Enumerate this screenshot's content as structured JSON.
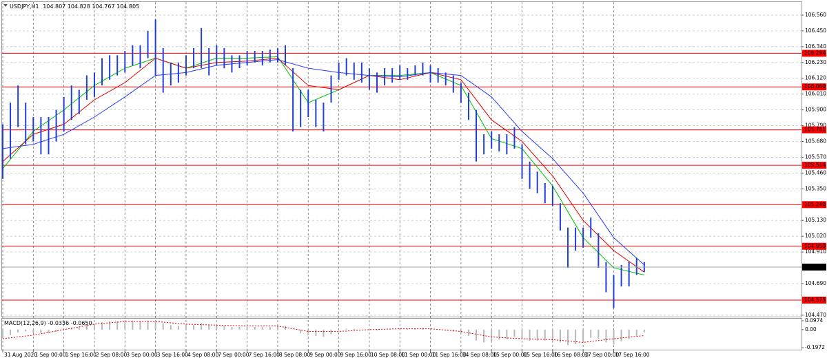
{
  "chart_data": [
    {
      "type": "range",
      "title": "USDJPY,H1",
      "header_values": [
        104.807,
        104.828,
        104.767,
        104.805
      ],
      "color": "#1f3fd6",
      "x": [
        0,
        4,
        8,
        12,
        16,
        20,
        24,
        28,
        32,
        36,
        40,
        44,
        48,
        52,
        56,
        60,
        64,
        68,
        72,
        76,
        80,
        84,
        88,
        92,
        96,
        100,
        104,
        108,
        112,
        116,
        120,
        124,
        128,
        132,
        136,
        140,
        144,
        148,
        152,
        156,
        160,
        164,
        168,
        172,
        176,
        180,
        184,
        188,
        192,
        196,
        200,
        204,
        208,
        212,
        216,
        220,
        224,
        228,
        232,
        236,
        240,
        244,
        248,
        252,
        256,
        260,
        264,
        268,
        272,
        276,
        280,
        284,
        288,
        292,
        296,
        300,
        304,
        308,
        312,
        316,
        320,
        324,
        328,
        332,
        336
      ],
      "high": [
        105.8,
        105.95,
        106.07,
        105.95,
        105.85,
        105.85,
        105.85,
        105.9,
        105.99,
        106.07,
        106.04,
        106.14,
        106.16,
        106.26,
        106.28,
        106.28,
        106.31,
        106.35,
        106.35,
        106.45,
        106.53,
        106.33,
        106.23,
        106.23,
        106.28,
        106.33,
        106.47,
        106.33,
        106.35,
        106.33,
        106.28,
        106.28,
        106.31,
        106.31,
        106.31,
        106.32,
        106.33,
        106.35,
        106.19,
        106.04,
        106.04,
        105.97,
        105.95,
        106.14,
        106.23,
        106.26,
        106.23,
        106.23,
        106.19,
        106.16,
        106.19,
        106.19,
        106.21,
        106.19,
        106.21,
        106.23,
        106.21,
        106.19,
        106.16,
        106.14,
        106.09,
        106.02,
        105.9,
        105.73,
        105.75,
        105.73,
        105.73,
        105.78,
        105.66,
        105.54,
        105.47,
        105.39,
        105.37,
        105.25,
        105.08,
        105.08,
        105.08,
        105.15,
        105.04,
        104.84,
        104.75,
        104.82,
        104.84,
        104.87,
        104.84
      ],
      "low": [
        105.42,
        105.56,
        105.78,
        105.66,
        105.68,
        105.59,
        105.59,
        105.68,
        105.75,
        105.83,
        105.87,
        105.97,
        105.99,
        106.07,
        106.11,
        106.14,
        106.16,
        106.21,
        106.19,
        106.26,
        106.14,
        106.02,
        106.07,
        106.09,
        106.14,
        106.19,
        106.19,
        106.14,
        106.21,
        106.19,
        106.16,
        106.19,
        106.21,
        106.23,
        106.21,
        106.23,
        106.23,
        106.21,
        105.75,
        105.78,
        105.85,
        105.78,
        105.75,
        105.95,
        106.11,
        106.14,
        106.11,
        106.09,
        106.04,
        106.02,
        106.07,
        106.09,
        106.11,
        106.11,
        106.14,
        106.14,
        106.09,
        106.09,
        106.07,
        106.02,
        105.95,
        105.83,
        105.54,
        105.59,
        105.63,
        105.61,
        105.59,
        105.63,
        105.42,
        105.35,
        105.32,
        105.25,
        105.23,
        105.06,
        104.8,
        104.92,
        104.94,
        105.01,
        104.8,
        104.63,
        104.52,
        104.67,
        104.67,
        104.75,
        104.77
      ],
      "moving_averages": [
        {
          "color": "#00c000",
          "x": [
            0,
            16,
            32,
            48,
            64,
            80,
            96,
            112,
            128,
            144,
            160,
            176,
            192,
            208,
            224,
            240,
            256,
            272,
            288,
            304,
            320,
            336
          ],
          "values": [
            105.49,
            105.75,
            105.9,
            106.07,
            106.19,
            106.26,
            106.19,
            106.26,
            106.26,
            106.27,
            105.95,
            106.04,
            106.14,
            106.14,
            106.16,
            106.07,
            105.7,
            105.63,
            105.37,
            105.01,
            104.8,
            104.75
          ]
        },
        {
          "color": "#e00000",
          "x": [
            0,
            16,
            32,
            48,
            64,
            80,
            96,
            112,
            128,
            144,
            160,
            176,
            192,
            208,
            224,
            240,
            256,
            272,
            288,
            304,
            320,
            336
          ],
          "values": [
            105.54,
            105.73,
            105.8,
            105.97,
            106.09,
            106.26,
            106.19,
            106.23,
            106.24,
            106.26,
            106.07,
            106.04,
            106.14,
            106.11,
            106.16,
            106.11,
            105.83,
            105.68,
            105.44,
            105.13,
            104.92,
            104.77
          ]
        },
        {
          "color": "#2a3cf0",
          "x": [
            0,
            16,
            32,
            48,
            64,
            80,
            96,
            112,
            128,
            144,
            160,
            176,
            192,
            208,
            224,
            240,
            256,
            272,
            288,
            304,
            320,
            336
          ],
          "values": [
            105.63,
            105.66,
            105.73,
            105.85,
            105.99,
            106.14,
            106.16,
            106.21,
            106.23,
            106.25,
            106.19,
            106.16,
            106.14,
            106.13,
            106.16,
            106.14,
            105.99,
            105.75,
            105.56,
            105.32,
            105.01,
            104.82
          ]
        }
      ],
      "levels": [
        106.294,
        {
          "value": 106.06,
          "label": "106.060"
        },
        105.761,
        105.514,
        {
          "value": 105.24,
          "label": "105.240"
        },
        {
          "value": 104.95,
          "label": "104.950"
        },
        104.575
      ],
      "level_color": "#ff0000",
      "current_price": 104.805,
      "xlim": [
        0,
        418
      ],
      "ylim": [
        104.46,
        106.646
      ],
      "xticks": [
        {
          "value": 0,
          "label": "31 Aug 2020"
        },
        {
          "value": 16,
          "label": "1 Sep 00:00"
        },
        {
          "value": 32,
          "label": "1 Sep 16:00"
        },
        {
          "value": 48,
          "label": "2 Sep 08:00"
        },
        {
          "value": 64,
          "label": "3 Sep 00:00"
        },
        {
          "value": 80,
          "label": "3 Sep 16:00"
        },
        {
          "value": 96,
          "label": "4 Sep 08:00"
        },
        {
          "value": 112,
          "label": "7 Sep 00:00"
        },
        {
          "value": 128,
          "label": "7 Sep 16:00"
        },
        {
          "value": 144,
          "label": "8 Sep 08:00"
        },
        {
          "value": 160,
          "label": "9 Sep 00:00"
        },
        {
          "value": 176,
          "label": "9 Sep 16:00"
        },
        {
          "value": 192,
          "label": "10 Sep 08:00"
        },
        {
          "value": 208,
          "label": "11 Sep 00:00"
        },
        {
          "value": 224,
          "label": "11 Sep 16:00"
        },
        {
          "value": 240,
          "label": "14 Sep 08:00"
        },
        {
          "value": 256,
          "label": "15 Sep 00:00"
        },
        {
          "value": 272,
          "label": "15 Sep 16:00"
        },
        {
          "value": 288,
          "label": "16 Sep 08:00"
        },
        {
          "value": 304,
          "label": "17 Sep 00:00"
        },
        {
          "value": 320,
          "label": "17 Sep 16:00"
        }
      ],
      "yticks": [
        {
          "value": 106.56,
          "label": "106.560"
        },
        {
          "value": 106.45,
          "label": "106.450"
        },
        {
          "value": 106.34,
          "label": "106.340"
        },
        {
          "value": 106.23,
          "label": "106.230"
        },
        {
          "value": 106.12,
          "label": "106.120"
        },
        {
          "value": 106.01,
          "label": "106.010"
        },
        {
          "value": 105.9,
          "label": "105.900"
        },
        {
          "value": 105.79,
          "label": "105.790"
        },
        {
          "value": 105.68,
          "label": "105.680"
        },
        {
          "value": 105.57,
          "label": "105.570"
        },
        {
          "value": 105.46,
          "label": "105.460"
        },
        {
          "value": 105.35,
          "label": "105.350"
        },
        {
          "value": 105.13,
          "label": "105.130"
        },
        {
          "value": 105.02,
          "label": "105.020"
        },
        {
          "value": 104.91,
          "label": "104.910"
        },
        {
          "value": 104.69,
          "label": "104.690"
        },
        {
          "value": 104.47,
          "label": "104.470"
        }
      ],
      "grid": true
    },
    {
      "type": "macd",
      "title": "MACD(12,26,9)",
      "main_value": -0.0336,
      "signal_value": {
        "value": -0.065,
        "label": "-0.0650"
      },
      "histogram_color": "#b8b8b8",
      "signal_color": "#e00000",
      "x": [
        0,
        4,
        8,
        12,
        16,
        20,
        24,
        28,
        32,
        36,
        40,
        44,
        48,
        52,
        56,
        60,
        64,
        68,
        72,
        76,
        80,
        84,
        88,
        92,
        96,
        100,
        104,
        108,
        112,
        116,
        120,
        124,
        128,
        132,
        136,
        140,
        144,
        148,
        152,
        156,
        160,
        164,
        168,
        172,
        176,
        180,
        184,
        188,
        192,
        196,
        200,
        204,
        208,
        212,
        216,
        220,
        224,
        228,
        232,
        236,
        240,
        244,
        248,
        252,
        256,
        260,
        264,
        268,
        272,
        276,
        280,
        284,
        288,
        292,
        296,
        300,
        304,
        308,
        312,
        316,
        320,
        324,
        328,
        332,
        336
      ],
      "values": [
        -0.08,
        -0.06,
        -0.03,
        -0.02,
        -0.03,
        -0.04,
        -0.04,
        -0.02,
        0.0,
        0.02,
        0.03,
        0.05,
        0.06,
        0.08,
        0.09,
        0.09,
        0.09,
        0.1,
        0.09,
        0.1,
        0.1,
        0.07,
        0.05,
        0.04,
        0.04,
        0.05,
        0.07,
        0.05,
        0.05,
        0.04,
        0.03,
        0.03,
        0.03,
        0.03,
        0.03,
        0.03,
        0.04,
        0.04,
        0.0,
        -0.04,
        -0.06,
        -0.07,
        -0.08,
        -0.05,
        -0.01,
        0.01,
        0.01,
        0.0,
        -0.01,
        -0.01,
        0.0,
        0.0,
        0.01,
        0.01,
        0.01,
        0.02,
        0.01,
        0.0,
        -0.01,
        -0.02,
        -0.04,
        -0.07,
        -0.12,
        -0.14,
        -0.13,
        -0.11,
        -0.1,
        -0.08,
        -0.1,
        -0.12,
        -0.12,
        -0.12,
        -0.12,
        -0.14,
        -0.17,
        -0.16,
        -0.13,
        -0.09,
        -0.1,
        -0.14,
        -0.16,
        -0.13,
        -0.1,
        -0.07,
        -0.03
      ],
      "signal_x": [
        0,
        16,
        32,
        48,
        64,
        80,
        96,
        112,
        128,
        144,
        160,
        176,
        192,
        208,
        224,
        240,
        256,
        272,
        288,
        304,
        320,
        336
      ],
      "signal": [
        -0.1,
        -0.06,
        0.0,
        0.06,
        0.09,
        0.09,
        0.06,
        0.05,
        0.04,
        0.04,
        -0.02,
        -0.02,
        0.0,
        0.01,
        0.01,
        -0.02,
        -0.08,
        -0.1,
        -0.11,
        -0.14,
        -0.1,
        -0.065
      ],
      "ylim": [
        -0.22,
        0.12
      ],
      "yticks": [
        0.0974,
        {
          "value": 0,
          "label": "0.00"
        },
        -0.1972
      ]
    }
  ]
}
